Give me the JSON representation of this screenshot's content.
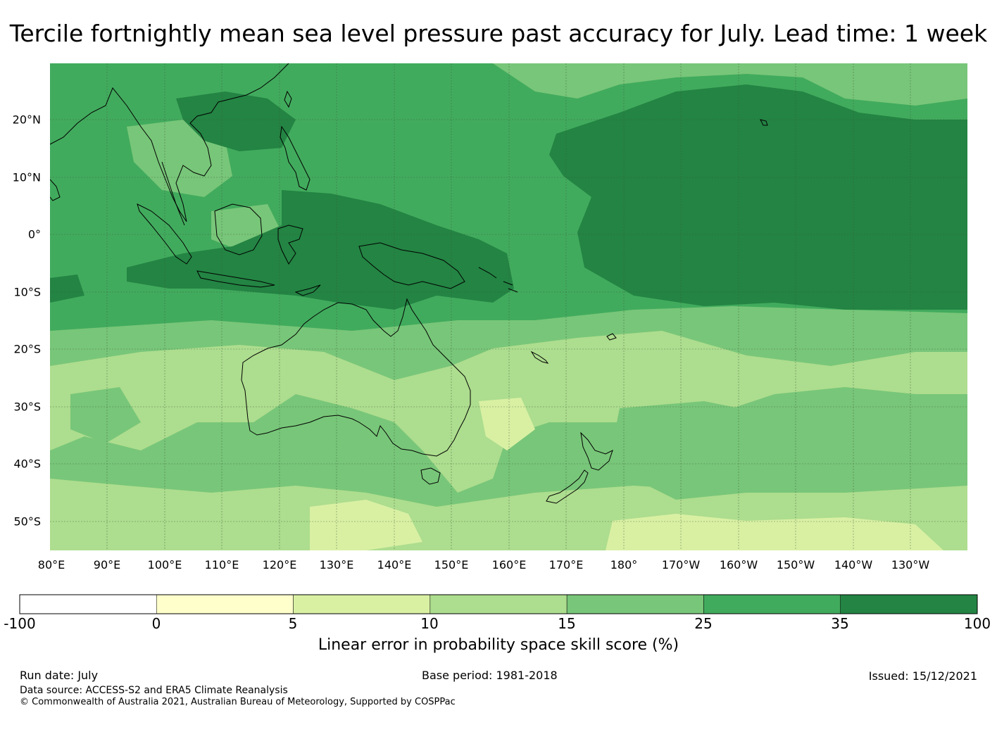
{
  "title": "Tercile fortnightly mean sea level pressure past accuracy for July. Lead time: 1 week",
  "map": {
    "region": "Indo-Pacific / Australia",
    "lat_labels": [
      "20°N",
      "10°N",
      "0°",
      "10°S",
      "20°S",
      "30°S",
      "40°S",
      "50°S"
    ],
    "lon_labels": [
      "80°E",
      "90°E",
      "100°E",
      "110°E",
      "120°E",
      "130°E",
      "140°E",
      "150°E",
      "160°E",
      "170°E",
      "180°",
      "170°W",
      "160°W",
      "150°W",
      "140°W",
      "130°W"
    ]
  },
  "colorbar": {
    "ticks": [
      "-100",
      "0",
      "5",
      "10",
      "15",
      "25",
      "35",
      "100"
    ],
    "colors": [
      "#ffffff",
      "#ffffcc",
      "#d9f0a3",
      "#addd8e",
      "#78c679",
      "#41ab5d",
      "#238443"
    ],
    "label": "Linear error in probability space skill score (%)"
  },
  "footer": {
    "run_date": "Run date: July",
    "base_period": "Base period: 1981-2018",
    "issued": "Issued: 15/12/2021",
    "data_source": "Data source: ACCESS-S2 and ERA5 Climate Reanalysis",
    "copyright": "© Commonwealth of Australia 2021, Australian Bureau of Meteorology, Supported by COSPPac"
  }
}
